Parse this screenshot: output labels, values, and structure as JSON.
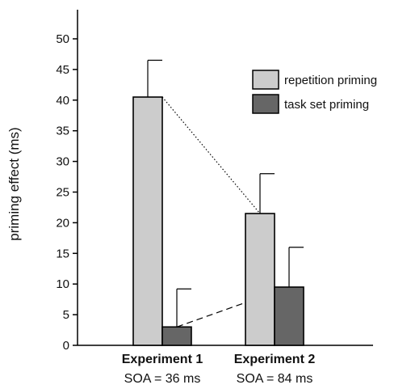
{
  "chart_data": {
    "type": "bar",
    "ylabel": "priming effect (ms)",
    "ylim": [
      0,
      55
    ],
    "yticks": [
      0,
      5,
      10,
      15,
      20,
      25,
      30,
      35,
      40,
      45,
      50
    ],
    "categories": [
      {
        "name": "Experiment 1",
        "sub": "SOA = 36 ms"
      },
      {
        "name": "Experiment 2",
        "sub": "SOA = 84 ms"
      }
    ],
    "series": [
      {
        "name": "repetition priming",
        "color": "#cccccc",
        "values": [
          40.5,
          21.5
        ],
        "errors": [
          6.0,
          6.5
        ],
        "connector": "dotted"
      },
      {
        "name": "task set priming",
        "color": "#666666",
        "values": [
          3.0,
          9.5
        ],
        "errors": [
          6.2,
          6.5
        ],
        "connector": "dashed"
      }
    ],
    "legend_position": "top-right",
    "grid": false
  }
}
